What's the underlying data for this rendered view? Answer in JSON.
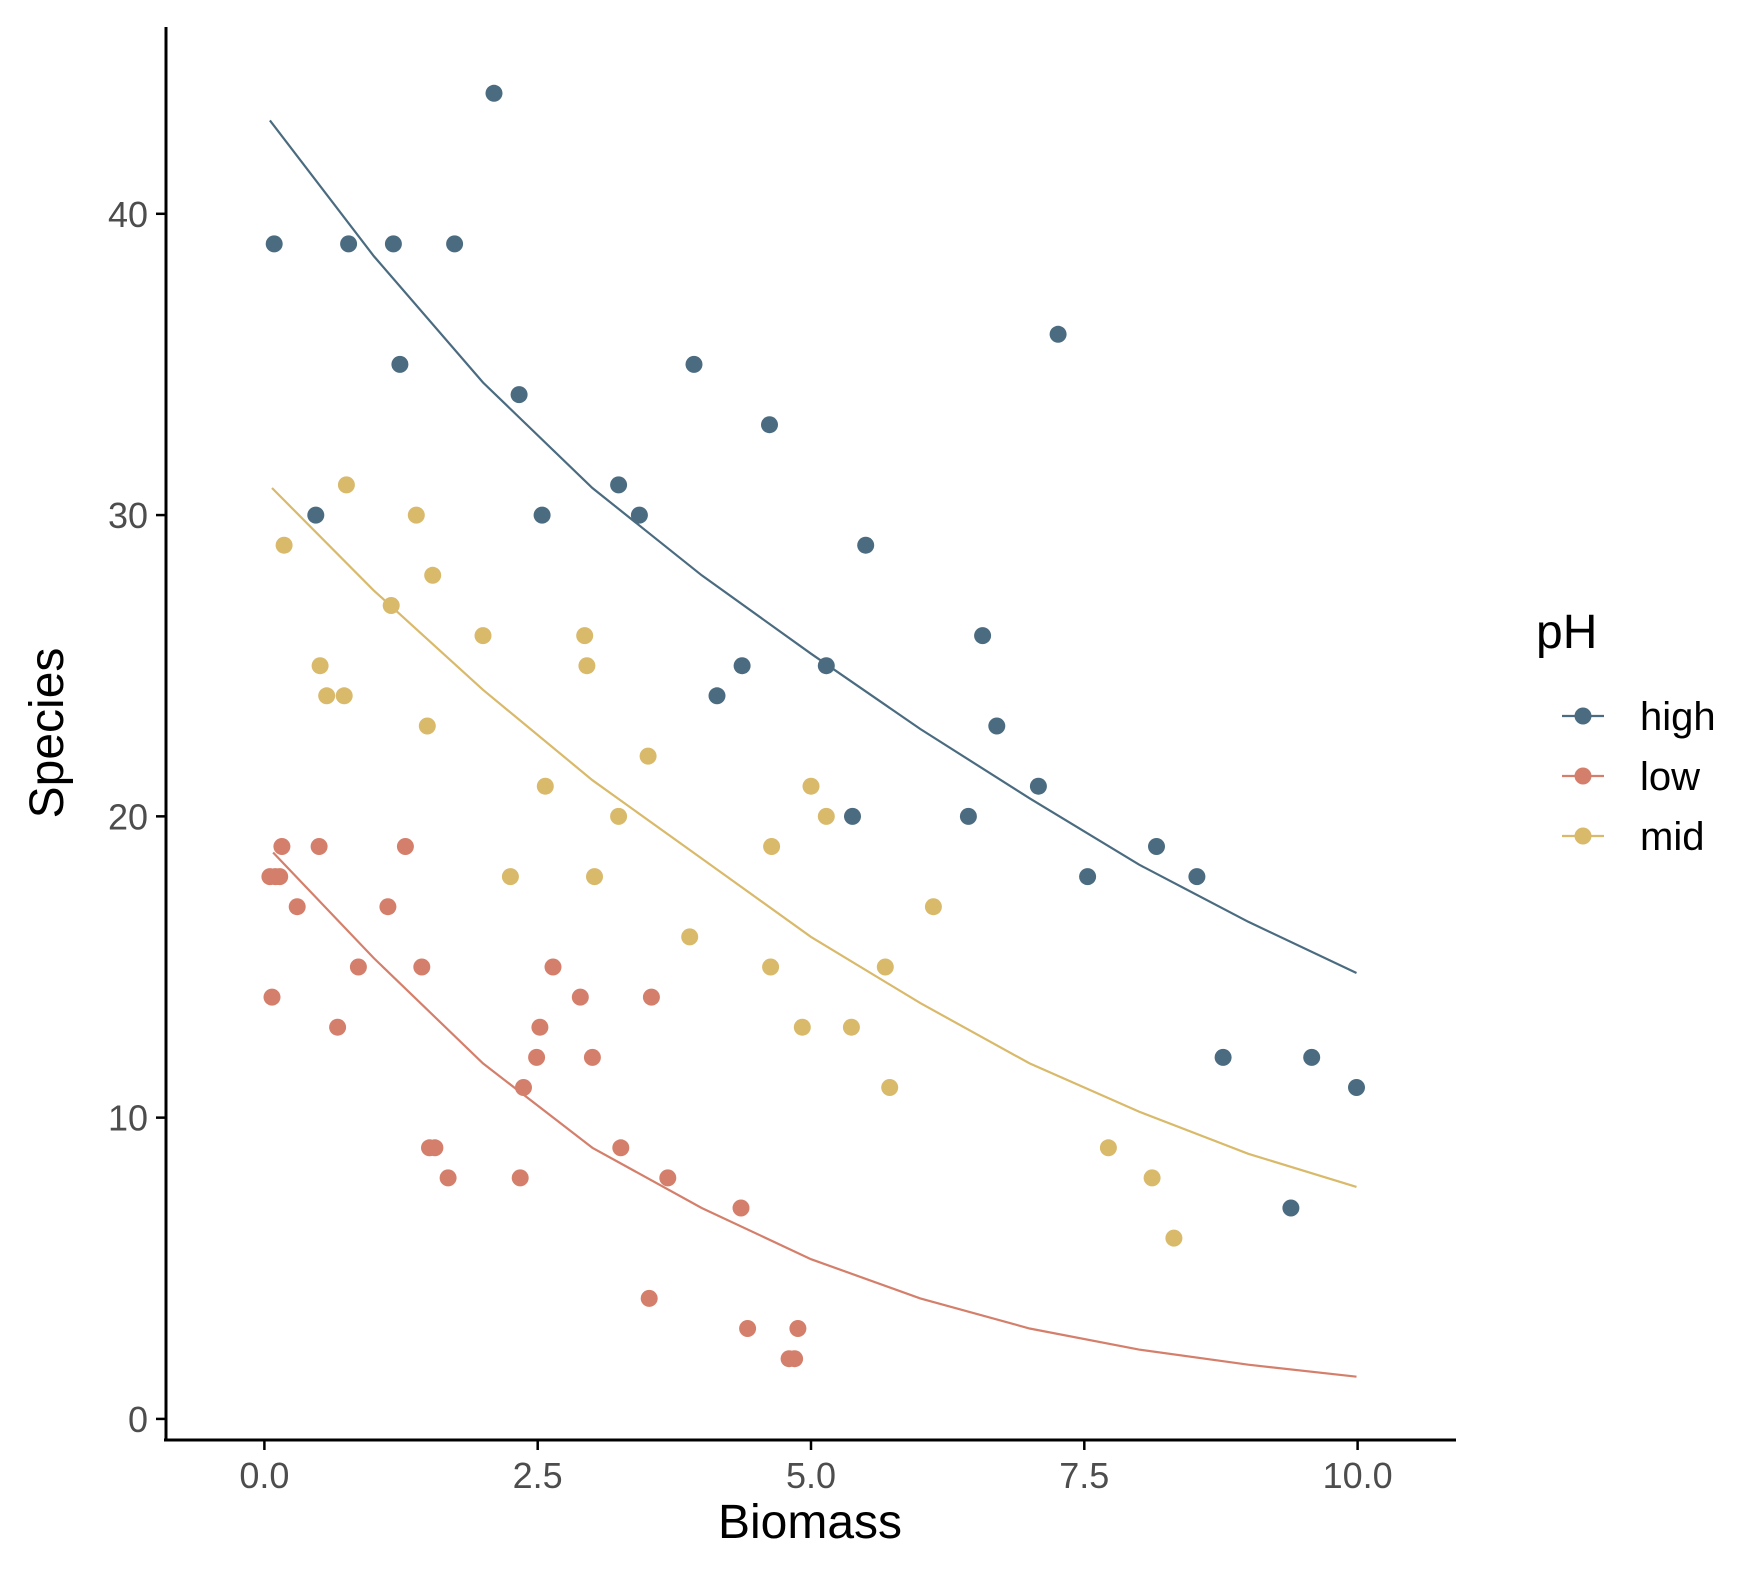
{
  "chart_data": {
    "type": "scatter",
    "xlabel": "Biomass",
    "ylabel": "Species",
    "xlim": [
      -0.9,
      10.9
    ],
    "ylim": [
      -0.7,
      46.2
    ],
    "x_ticks": [
      0,
      2.5,
      5,
      7.5,
      10
    ],
    "x_tick_labels": [
      "0.0",
      "2.5",
      "5.0",
      "7.5",
      "10.0"
    ],
    "y_ticks": [
      0,
      10,
      20,
      30,
      40
    ],
    "y_tick_labels": [
      "0",
      "10",
      "20",
      "30",
      "40"
    ],
    "grid": false,
    "legend": {
      "title": "pH",
      "position": "right"
    },
    "series": [
      {
        "name": "high",
        "color": "#4a6b80",
        "points": [
          [
            0.09,
            39
          ],
          [
            0.47,
            30
          ],
          [
            0.77,
            39
          ],
          [
            1.18,
            39
          ],
          [
            1.24,
            35
          ],
          [
            1.74,
            39
          ],
          [
            2.1,
            44
          ],
          [
            2.33,
            34
          ],
          [
            2.54,
            30
          ],
          [
            3.24,
            31
          ],
          [
            3.43,
            30
          ],
          [
            3.93,
            35
          ],
          [
            4.14,
            24
          ],
          [
            4.37,
            25
          ],
          [
            4.62,
            33
          ],
          [
            5.14,
            25
          ],
          [
            5.38,
            20
          ],
          [
            5.5,
            29
          ],
          [
            6.44,
            20
          ],
          [
            6.57,
            26
          ],
          [
            6.7,
            23
          ],
          [
            7.08,
            21
          ],
          [
            7.26,
            36
          ],
          [
            7.53,
            18
          ],
          [
            8.16,
            19
          ],
          [
            8.53,
            18
          ],
          [
            8.77,
            12
          ],
          [
            9.39,
            7
          ],
          [
            9.58,
            12
          ],
          [
            9.99,
            11
          ]
        ],
        "fit": [
          [
            0.05,
            43.1
          ],
          [
            1,
            38.6
          ],
          [
            2,
            34.4
          ],
          [
            3,
            30.9
          ],
          [
            4,
            28.0
          ],
          [
            5,
            25.4
          ],
          [
            6,
            22.9
          ],
          [
            7,
            20.6
          ],
          [
            8,
            18.4
          ],
          [
            9,
            16.5
          ],
          [
            9.99,
            14.8
          ]
        ]
      },
      {
        "name": "low",
        "color": "#d47f6b",
        "points": [
          [
            0.05,
            18
          ],
          [
            0.07,
            14
          ],
          [
            0.1,
            18
          ],
          [
            0.14,
            18
          ],
          [
            0.16,
            19
          ],
          [
            0.3,
            17
          ],
          [
            0.5,
            19
          ],
          [
            0.67,
            13
          ],
          [
            0.86,
            15
          ],
          [
            1.13,
            17
          ],
          [
            1.29,
            19
          ],
          [
            1.44,
            15
          ],
          [
            1.51,
            9
          ],
          [
            1.56,
            9
          ],
          [
            1.68,
            8
          ],
          [
            2.34,
            8
          ],
          [
            2.37,
            11
          ],
          [
            2.49,
            12
          ],
          [
            2.52,
            13
          ],
          [
            2.64,
            15
          ],
          [
            2.89,
            14
          ],
          [
            3.0,
            12
          ],
          [
            3.26,
            9
          ],
          [
            3.52,
            4
          ],
          [
            3.54,
            14
          ],
          [
            3.69,
            8
          ],
          [
            4.36,
            7
          ],
          [
            4.42,
            3
          ],
          [
            4.8,
            2
          ],
          [
            4.85,
            2
          ],
          [
            4.88,
            3
          ]
        ],
        "fit": [
          [
            0.08,
            18.8
          ],
          [
            1,
            15.3
          ],
          [
            2,
            11.8
          ],
          [
            3,
            9.0
          ],
          [
            4,
            7.0
          ],
          [
            5,
            5.3
          ],
          [
            6,
            4.0
          ],
          [
            7,
            3.0
          ],
          [
            8,
            2.3
          ],
          [
            9,
            1.8
          ],
          [
            9.99,
            1.4
          ]
        ]
      },
      {
        "name": "mid",
        "color": "#d9b96a",
        "points": [
          [
            0.18,
            29
          ],
          [
            0.51,
            25
          ],
          [
            0.57,
            24
          ],
          [
            0.73,
            24
          ],
          [
            0.75,
            31
          ],
          [
            1.16,
            27
          ],
          [
            1.39,
            30
          ],
          [
            1.49,
            23
          ],
          [
            1.54,
            28
          ],
          [
            2.0,
            26
          ],
          [
            2.25,
            18
          ],
          [
            2.57,
            21
          ],
          [
            2.93,
            26
          ],
          [
            2.95,
            25
          ],
          [
            3.02,
            18
          ],
          [
            3.24,
            20
          ],
          [
            3.51,
            22
          ],
          [
            3.89,
            16
          ],
          [
            4.63,
            15
          ],
          [
            4.64,
            19
          ],
          [
            4.92,
            13
          ],
          [
            5.0,
            21
          ],
          [
            5.14,
            20
          ],
          [
            5.37,
            13
          ],
          [
            5.68,
            15
          ],
          [
            5.72,
            11
          ],
          [
            6.12,
            17
          ],
          [
            7.72,
            9
          ],
          [
            8.12,
            8
          ],
          [
            8.32,
            6
          ]
        ],
        "fit": [
          [
            0.07,
            30.9
          ],
          [
            1,
            27.5
          ],
          [
            2,
            24.2
          ],
          [
            3,
            21.2
          ],
          [
            4,
            18.6
          ],
          [
            5,
            16.0
          ],
          [
            6,
            13.8
          ],
          [
            7,
            11.8
          ],
          [
            8,
            10.2
          ],
          [
            9,
            8.8
          ],
          [
            9.99,
            7.7
          ]
        ]
      }
    ]
  }
}
